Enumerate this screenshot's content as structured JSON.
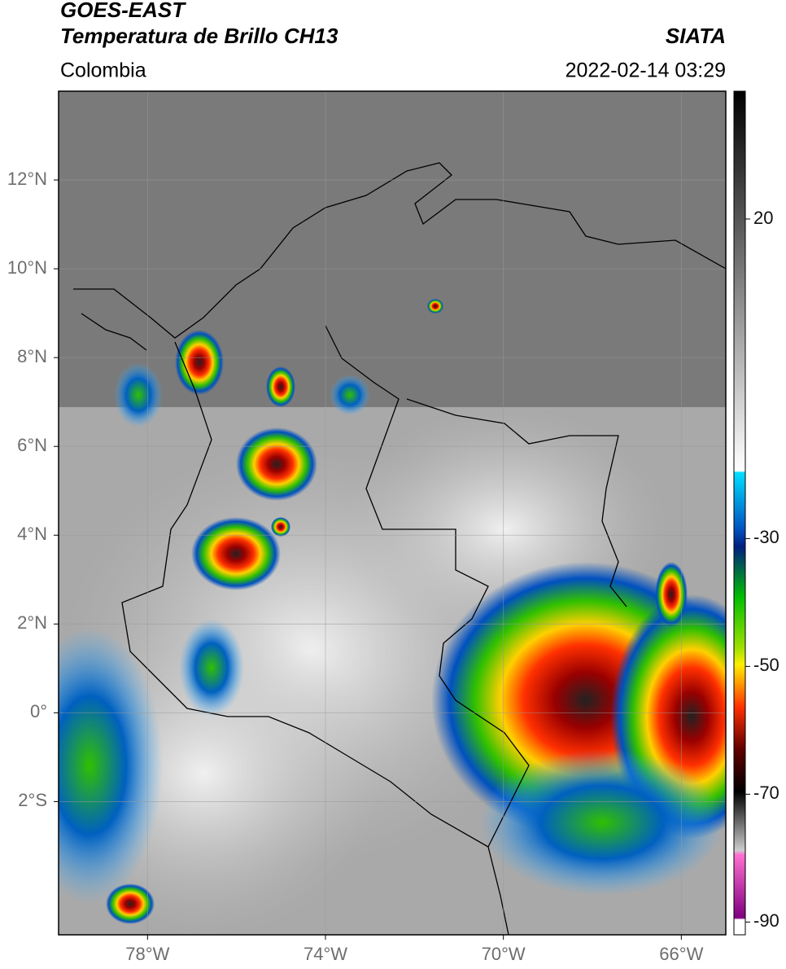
{
  "header": {
    "title": "GOES-EAST",
    "subtitle": "Temperatura de Brillo CH13",
    "source": "SIATA",
    "region": "Colombia",
    "datetime": "2022-02-14 03:29"
  },
  "map": {
    "xlim": [
      -80,
      -65
    ],
    "ylim": [
      -5,
      14
    ],
    "grid": true,
    "xticks": [
      {
        "value": -78,
        "label": "78°W"
      },
      {
        "value": -74,
        "label": "74°W"
      },
      {
        "value": -70,
        "label": "70°W"
      },
      {
        "value": -66,
        "label": "66°W"
      }
    ],
    "yticks": [
      {
        "value": 12,
        "label": "12°N"
      },
      {
        "value": 10,
        "label": "10°N"
      },
      {
        "value": 8,
        "label": "8°N"
      },
      {
        "value": 6,
        "label": "6°N"
      },
      {
        "value": 4,
        "label": "4°N"
      },
      {
        "value": 2,
        "label": "2°N"
      },
      {
        "value": 0,
        "label": "0°"
      },
      {
        "value": -2,
        "label": "2°S"
      }
    ]
  },
  "colorbar": {
    "lim": [
      -92,
      40
    ],
    "ticks": [
      20,
      -30,
      -50,
      -70,
      -90
    ]
  }
}
